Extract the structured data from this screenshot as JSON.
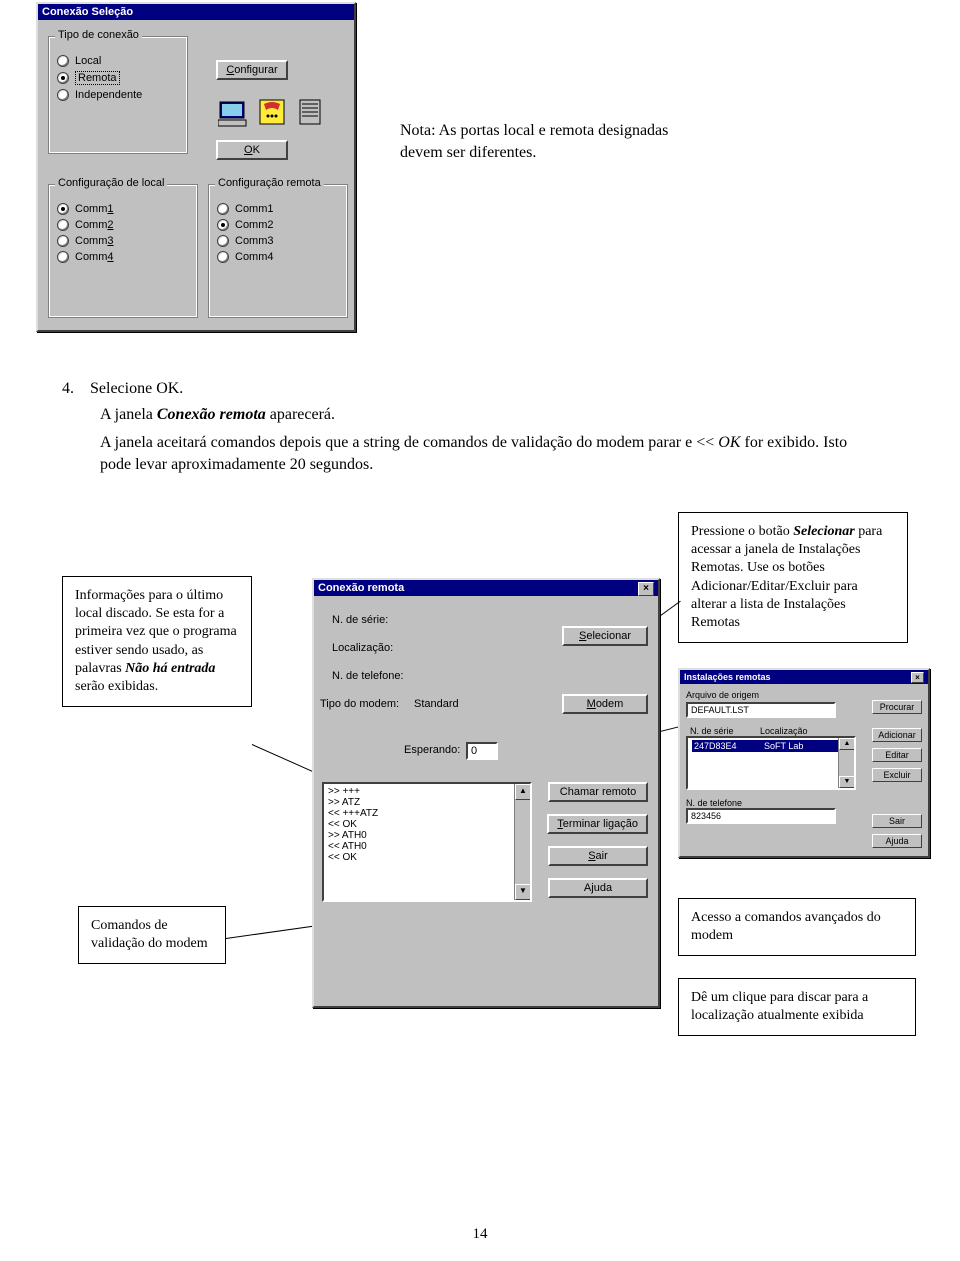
{
  "page_number": "14",
  "dialog1": {
    "title": "Conexão Seleção",
    "group_tipo_label": "Tipo de conexão",
    "radios_tipo": [
      "Local",
      "Remota",
      "Independente"
    ],
    "radios_tipo_selected": 1,
    "btn_configurar": "Configurar",
    "btn_configurar_u": "C",
    "btn_ok": "OK",
    "btn_ok_u": "O",
    "group_local_label": "Configuração de local",
    "radios_local": [
      "Comm1",
      "Comm2",
      "Comm3",
      "Comm4"
    ],
    "radios_local_sel": 0,
    "radios_local_u": [
      "1",
      "2",
      "3",
      "4"
    ],
    "group_remota_label": "Configuração remota",
    "radios_remota": [
      "Comm1",
      "Comm2",
      "Comm3",
      "Comm4"
    ],
    "radios_remota_sel": 1
  },
  "nota": {
    "line1": "Nota: As portas local e remota designadas",
    "line2": "devem ser diferentes."
  },
  "step4": {
    "num": "4.",
    "text": "Selecione OK.",
    "p2_a": "A janela ",
    "p2_b": "Conexão remota",
    "p2_c": " aparecerá.",
    "p3_a": "A janela aceitará comandos depois que a string de comandos de validação do modem parar e << ",
    "p3_b": "OK",
    "p3_c": " for exibido. Isto pode levar aproximadamente 20 segundos."
  },
  "callout_left_top": {
    "t1": "Informações para o último local discado. Se esta for a primeira vez que o programa estiver sendo usado, as palavras ",
    "t2": "Não há entrada",
    "t3": " serão exibidas."
  },
  "callout_left_bottom": "Comandos de validação do modem",
  "callout_right_top": {
    "t1": "Pressione o botão ",
    "t2": "Selecionar",
    "t3": " para acessar a janela de Instalações Remotas. Use os botões Adicionar/Editar/Excluir para alterar a lista de Instalações Remotas"
  },
  "callout_right_mid": "Acesso a comandos avançados do modem",
  "callout_right_bottom": "Dê um clique para discar para a localização atualmente exibida",
  "dialog2": {
    "title": "Conexão remota",
    "lbl_serie": "N. de série:",
    "lbl_local": "Localização:",
    "lbl_tel": "N. de telefone:",
    "lbl_tipo": "Tipo do modem:",
    "val_tipo": "Standard",
    "lbl_esperando": "Esperando:",
    "val_esperando": "0",
    "btn_selecionar": "Selecionar",
    "btn_selecionar_u": "S",
    "btn_modem": "Modem",
    "btn_modem_u": "M",
    "btn_chamar": "Chamar remoto",
    "btn_terminar": "Terminar ligação",
    "btn_terminar_u": "T",
    "btn_sair": "Sair",
    "btn_sair_u": "S",
    "btn_ajuda": "Ajuda",
    "log": [
      ">> +++",
      ">> ATZ",
      "<< +++ATZ",
      "<< OK",
      ">> ATH0",
      "<< ATH0",
      "<< OK"
    ]
  },
  "dialog3": {
    "title": "Instalações remotas",
    "lbl_arquivo": "Arquivo de origem",
    "val_arquivo": "DEFAULT.LST",
    "col1": "N. de série",
    "col2": "Localização",
    "row_sel_col1": "247D83E4",
    "row_sel_col2": "SoFT Lab",
    "lbl_tel": "N. de telefone",
    "val_tel": "823456",
    "btns": [
      "Procurar",
      "Adicionar",
      "Editar",
      "Excluir",
      "Sair",
      "Ajuda"
    ]
  }
}
